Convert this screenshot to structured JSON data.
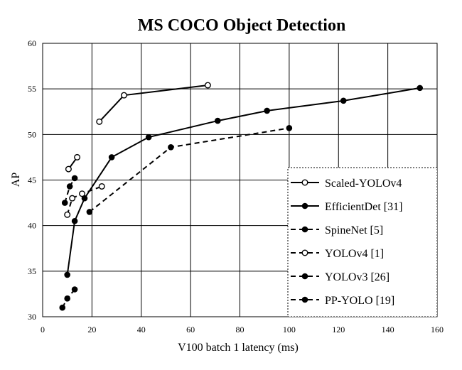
{
  "chart_data": {
    "type": "line",
    "title": "MS COCO Object Detection",
    "xlabel": "V100 batch 1 latency (ms)",
    "ylabel": "AP",
    "xlim": [
      0,
      160
    ],
    "ylim": [
      30,
      60
    ],
    "xticks": [
      0,
      20,
      40,
      60,
      80,
      100,
      120,
      140,
      160
    ],
    "yticks": [
      30,
      35,
      40,
      45,
      50,
      55,
      60
    ],
    "grid": true,
    "legend_position": "bottom-right",
    "series": [
      {
        "name": "Scaled-YOLOv4",
        "line": "solid",
        "marker": "hollow",
        "x": [
          23,
          33,
          67
        ],
        "y": [
          51.4,
          54.3,
          55.4
        ]
      },
      {
        "name": "Scaled-YOLOv4",
        "line": "solid",
        "marker": "hollow",
        "legend": false,
        "x": [
          10.5,
          14
        ],
        "y": [
          46.2,
          47.5
        ]
      },
      {
        "name": "EfficientDet [31]",
        "line": "solid",
        "marker": "filled",
        "x": [
          10,
          13,
          17,
          28,
          43,
          71,
          91,
          122,
          153
        ],
        "y": [
          34.6,
          40.5,
          43.0,
          47.5,
          49.7,
          51.5,
          52.6,
          53.7,
          55.1
        ]
      },
      {
        "name": "SpineNet [5]",
        "line": "dashed",
        "marker": "filled",
        "x": [
          19,
          52,
          100
        ],
        "y": [
          41.5,
          48.6,
          50.7
        ]
      },
      {
        "name": "YOLOv4 [1]",
        "line": "dashed",
        "marker": "hollow",
        "x": [
          10,
          12,
          16,
          24
        ],
        "y": [
          41.2,
          43.0,
          43.5,
          44.3
        ]
      },
      {
        "name": "YOLOv3 [26]",
        "line": "dashed",
        "marker": "filled",
        "x": [
          8,
          10,
          13
        ],
        "y": [
          31.0,
          32.0,
          33.0
        ]
      },
      {
        "name": "PP-YOLO [19]",
        "line": "dashed",
        "marker": "filled",
        "x": [
          9,
          11,
          13
        ],
        "y": [
          42.5,
          44.3,
          45.2
        ]
      }
    ]
  }
}
